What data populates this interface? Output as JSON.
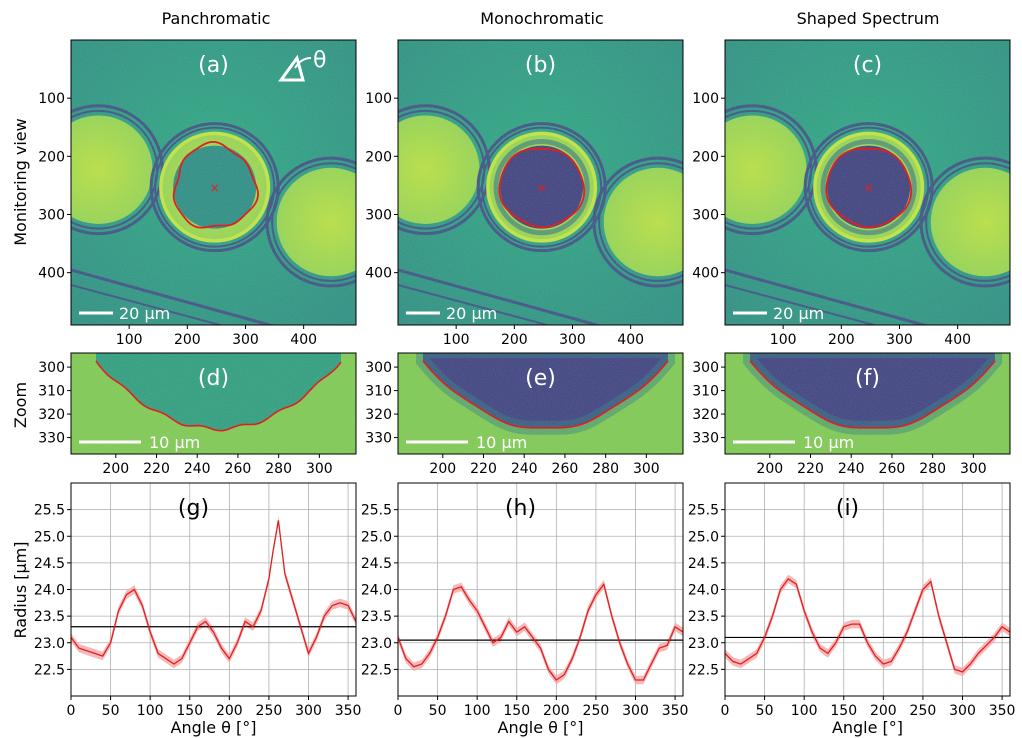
{
  "column_titles": [
    "Panchromatic",
    "Monochromatic",
    "Shaped Spectrum"
  ],
  "row_labels": {
    "monitoring": "Monitoring view",
    "zoom": "Zoom"
  },
  "theta_symbol": "θ",
  "colors": {
    "low": "#3b2b78",
    "mid": "#2a8c8a",
    "high": "#c8e03a",
    "contour": "#e02020",
    "band": "#f4a6a6",
    "mean": "#000000"
  },
  "chart_data": [
    {
      "type": "heatmap",
      "panel": "(a)",
      "colormap": "viridis",
      "title": "Panchromatic",
      "ylabel": "Monitoring view",
      "xticks": [
        100,
        200,
        300,
        400
      ],
      "yticks": [
        100,
        200,
        300,
        400
      ],
      "xlim": [
        0,
        490
      ],
      "ylim": [
        490,
        0
      ],
      "center": [
        247,
        253
      ],
      "scalebar": "20 µm",
      "contour_radius_px": 70,
      "contour_style": "irregular"
    },
    {
      "type": "heatmap",
      "panel": "(b)",
      "colormap": "viridis",
      "title": "Monochromatic",
      "xticks": [
        100,
        200,
        300,
        400
      ],
      "yticks": [
        100,
        200,
        300,
        400
      ],
      "xlim": [
        0,
        490
      ],
      "ylim": [
        490,
        0
      ],
      "center": [
        247,
        253
      ],
      "scalebar": "20 µm",
      "contour_radius_px": 70
    },
    {
      "type": "heatmap",
      "panel": "(c)",
      "colormap": "viridis",
      "title": "Shaped Spectrum",
      "xticks": [
        100,
        200,
        300,
        400
      ],
      "yticks": [
        100,
        200,
        300,
        400
      ],
      "xlim": [
        0,
        490
      ],
      "ylim": [
        490,
        0
      ],
      "center": [
        247,
        253
      ],
      "scalebar": "20 µm",
      "contour_radius_px": 70
    },
    {
      "type": "heatmap",
      "panel": "(d)",
      "colormap": "viridis",
      "ylabel": "Zoom",
      "xticks": [
        200,
        220,
        240,
        260,
        280,
        300
      ],
      "yticks": [
        300,
        310,
        320,
        330
      ],
      "xlim": [
        178,
        318
      ],
      "ylim": [
        337,
        294
      ],
      "scalebar": "10 µm"
    },
    {
      "type": "heatmap",
      "panel": "(e)",
      "colormap": "viridis",
      "xticks": [
        200,
        220,
        240,
        260,
        280,
        300
      ],
      "yticks": [
        300,
        310,
        320,
        330
      ],
      "xlim": [
        178,
        318
      ],
      "ylim": [
        337,
        294
      ],
      "scalebar": "10 µm"
    },
    {
      "type": "heatmap",
      "panel": "(f)",
      "colormap": "viridis",
      "xticks": [
        200,
        220,
        240,
        260,
        280,
        300
      ],
      "yticks": [
        300,
        310,
        320,
        330
      ],
      "xlim": [
        178,
        318
      ],
      "ylim": [
        337,
        294
      ],
      "scalebar": "10 µm"
    },
    {
      "type": "line",
      "panel": "(g)",
      "xlabel": "Angle θ [°]",
      "ylabel": "Radius [µm]",
      "xlim": [
        0,
        360
      ],
      "ylim": [
        22.0,
        26.0
      ],
      "xticks": [
        0,
        50,
        100,
        150,
        200,
        250,
        300,
        350
      ],
      "yticks": [
        22.5,
        23.0,
        23.5,
        24.0,
        24.5,
        25.0,
        25.5
      ],
      "mean": 23.3,
      "x": [
        0,
        10,
        20,
        30,
        40,
        50,
        60,
        70,
        80,
        90,
        100,
        110,
        120,
        130,
        140,
        150,
        160,
        170,
        180,
        190,
        200,
        210,
        220,
        230,
        240,
        250,
        255,
        262,
        270,
        280,
        290,
        300,
        310,
        320,
        330,
        340,
        350,
        360
      ],
      "y": [
        23.1,
        22.9,
        22.85,
        22.8,
        22.75,
        23.0,
        23.6,
        23.9,
        24.0,
        23.7,
        23.2,
        22.8,
        22.7,
        22.6,
        22.7,
        23.0,
        23.3,
        23.4,
        23.2,
        22.9,
        22.7,
        23.0,
        23.4,
        23.3,
        23.6,
        24.2,
        24.7,
        25.3,
        24.3,
        23.8,
        23.3,
        22.8,
        23.1,
        23.5,
        23.7,
        23.75,
        23.7,
        23.4
      ]
    },
    {
      "type": "line",
      "panel": "(h)",
      "xlabel": "Angle θ [°]",
      "xlim": [
        0,
        360
      ],
      "ylim": [
        22.0,
        26.0
      ],
      "xticks": [
        0,
        50,
        100,
        150,
        200,
        250,
        300,
        350
      ],
      "yticks": [
        22.5,
        23.0,
        23.5,
        24.0,
        24.5,
        25.0,
        25.5
      ],
      "mean": 23.05,
      "x": [
        0,
        10,
        20,
        30,
        40,
        50,
        60,
        70,
        80,
        90,
        100,
        110,
        120,
        130,
        140,
        150,
        160,
        170,
        180,
        190,
        200,
        210,
        220,
        230,
        240,
        250,
        260,
        270,
        280,
        290,
        300,
        310,
        320,
        330,
        340,
        350,
        360
      ],
      "y": [
        23.1,
        22.7,
        22.55,
        22.6,
        22.8,
        23.1,
        23.5,
        24.0,
        24.05,
        23.8,
        23.6,
        23.3,
        23.0,
        23.1,
        23.4,
        23.2,
        23.3,
        23.1,
        22.9,
        22.5,
        22.3,
        22.4,
        22.7,
        23.1,
        23.6,
        23.9,
        24.1,
        23.5,
        23.0,
        22.6,
        22.3,
        22.3,
        22.6,
        22.9,
        22.95,
        23.3,
        23.2
      ]
    },
    {
      "type": "line",
      "panel": "(i)",
      "xlabel": "Angle [°]",
      "xlim": [
        0,
        360
      ],
      "ylim": [
        22.0,
        26.0
      ],
      "xticks": [
        0,
        50,
        100,
        150,
        200,
        250,
        300,
        350
      ],
      "yticks": [
        22.5,
        23.0,
        23.5,
        24.0,
        24.5,
        25.0,
        25.5
      ],
      "mean": 23.1,
      "x": [
        0,
        10,
        20,
        30,
        40,
        50,
        60,
        70,
        80,
        90,
        100,
        110,
        120,
        130,
        140,
        150,
        160,
        170,
        180,
        190,
        200,
        210,
        220,
        230,
        240,
        250,
        260,
        270,
        280,
        290,
        300,
        310,
        320,
        330,
        340,
        350,
        360
      ],
      "y": [
        22.8,
        22.65,
        22.6,
        22.7,
        22.8,
        23.1,
        23.5,
        24.0,
        24.2,
        24.1,
        23.6,
        23.2,
        22.9,
        22.8,
        23.0,
        23.3,
        23.35,
        23.35,
        23.0,
        22.75,
        22.6,
        22.65,
        22.9,
        23.2,
        23.6,
        24.0,
        24.15,
        23.5,
        23.0,
        22.5,
        22.45,
        22.6,
        22.8,
        22.95,
        23.1,
        23.3,
        23.2
      ]
    }
  ]
}
